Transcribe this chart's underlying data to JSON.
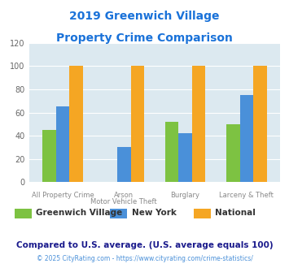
{
  "title_line1": "2019 Greenwich Village",
  "title_line2": "Property Crime Comparison",
  "title_color": "#1a72d9",
  "x_labels_line1": [
    "All Property Crime",
    "Arson",
    "Burglary",
    "Larceny & Theft"
  ],
  "x_labels_line2": [
    "",
    "Motor Vehicle Theft",
    "",
    ""
  ],
  "series": {
    "Greenwich Village": [
      45,
      0,
      52,
      50
    ],
    "New York": [
      65,
      30,
      42,
      75
    ],
    "National": [
      100,
      100,
      100,
      100
    ]
  },
  "colors": {
    "Greenwich Village": "#7dc242",
    "New York": "#4a90d9",
    "National": "#f5a623"
  },
  "ylim": [
    0,
    120
  ],
  "yticks": [
    0,
    20,
    40,
    60,
    80,
    100,
    120
  ],
  "background_color": "#dce9f0",
  "note_text": "Compared to U.S. average. (U.S. average equals 100)",
  "note_color": "#1a1a8c",
  "footer_text": "© 2025 CityRating.com - https://www.cityrating.com/crime-statistics/",
  "footer_color": "#4a90d9",
  "bar_width": 0.22
}
